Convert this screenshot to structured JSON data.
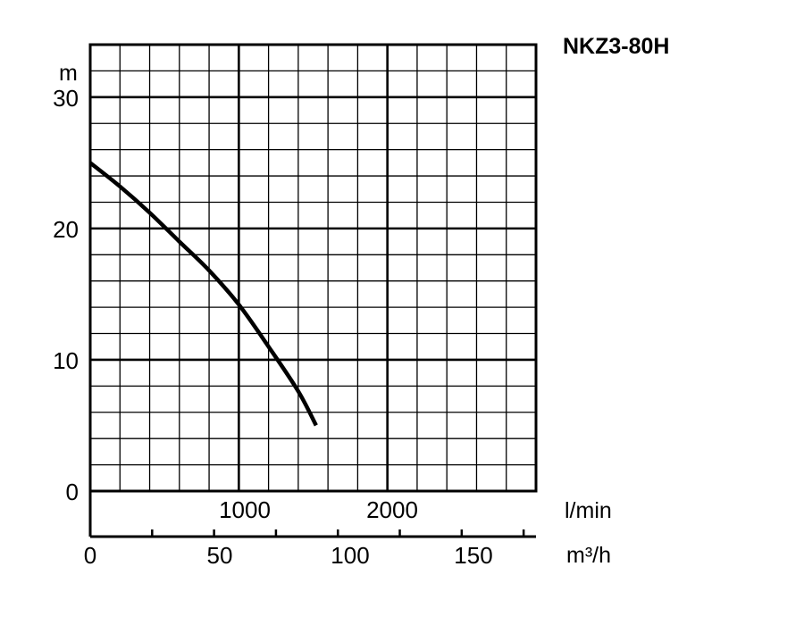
{
  "chart_data": {
    "type": "line",
    "title": "NKZ3-80H",
    "ylabel": "m",
    "xlabel_primary": "l/min",
    "xlabel_secondary": "m³/h",
    "xlim_lmin": [
      0,
      3000
    ],
    "ylim": [
      0,
      34
    ],
    "y_ticks": [
      "0",
      "10",
      "20",
      "30"
    ],
    "x_ticks_lmin": [
      "1000",
      "2000"
    ],
    "x_ticks_m3h": [
      "0",
      "50",
      "100",
      "150"
    ],
    "grid": true,
    "series": [
      {
        "x": [
          0,
          200,
          400,
          600,
          800,
          1000,
          1200,
          1400,
          1520
        ],
        "y": [
          25,
          23.2,
          21.2,
          19.0,
          16.8,
          14.2,
          11.0,
          7.6,
          5.0
        ],
        "x_units": "l/min",
        "y_units": "m"
      }
    ]
  }
}
